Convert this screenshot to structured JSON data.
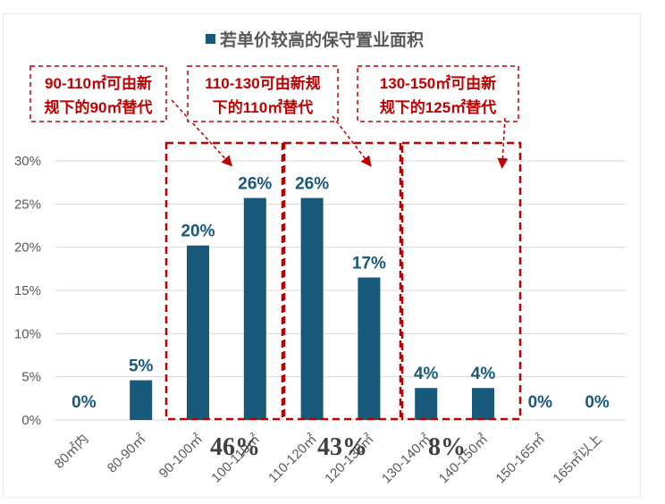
{
  "colors": {
    "bar": "#17597a",
    "label": "#17597a",
    "annotation": "#c00000",
    "axis_text": "#595959",
    "grid": "#d9d9d9"
  },
  "chart_data": {
    "type": "bar",
    "title": "若单价较高的保守置业面积",
    "legend": {
      "position": "top",
      "marker": "square"
    },
    "categories": [
      "80㎡内",
      "80-90㎡",
      "90-100㎡",
      "100-110㎡",
      "110-120㎡",
      "120-130㎡",
      "130-140㎡",
      "140-150㎡",
      "150-165㎡",
      "165㎡以上"
    ],
    "values": [
      0,
      4.6,
      20.2,
      25.7,
      25.7,
      16.5,
      3.7,
      3.7,
      0,
      0
    ],
    "data_labels": [
      "0%",
      "5%",
      "20%",
      "26%",
      "26%",
      "17%",
      "4%",
      "4%",
      "0%",
      "0%"
    ],
    "ylim": [
      0,
      30
    ],
    "yticks": [
      "0%",
      "5%",
      "10%",
      "15%",
      "20%",
      "25%",
      "30%"
    ],
    "grid": true,
    "groups": [
      {
        "share": "46%",
        "callout": [
          "90-110㎡可由新",
          "规下的90㎡替代"
        ]
      },
      {
        "share": "43%",
        "callout": [
          "110-130可由新规",
          "下的110㎡替代"
        ]
      },
      {
        "share": "8%",
        "callout": [
          "130-150㎡可由新",
          "规下的125㎡替代"
        ]
      }
    ]
  }
}
